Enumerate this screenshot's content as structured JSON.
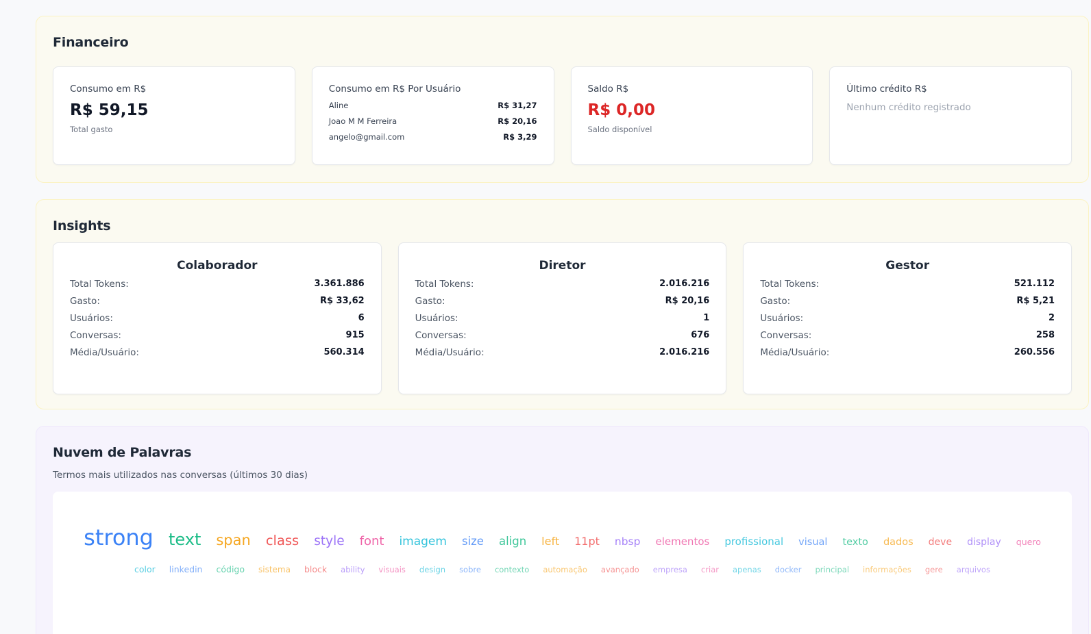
{
  "financeiro": {
    "title": "Financeiro",
    "consumo": {
      "title": "Consumo em R$",
      "value": "R$ 59,15",
      "note": "Total gasto"
    },
    "por_usuario": {
      "title": "Consumo em R$ Por Usuário",
      "rows": [
        {
          "name": "Aline",
          "value": "R$ 31,27"
        },
        {
          "name": "Joao M M Ferreira",
          "value": "R$ 20,16"
        },
        {
          "name": "angelo@gmail.com",
          "value": "R$ 3,29"
        }
      ]
    },
    "saldo": {
      "title": "Saldo R$",
      "value": "R$ 0,00",
      "note": "Saldo disponível",
      "color": "#dc2626"
    },
    "ultimo_credito": {
      "title": "Último crédito R$",
      "empty": "Nenhum crédito registrado"
    }
  },
  "insights": {
    "title": "Insights",
    "labels": {
      "tokens": "Total Tokens:",
      "gasto": "Gasto:",
      "usuarios": "Usuários:",
      "conversas": "Conversas:",
      "media": "Média/Usuário:"
    },
    "cards": [
      {
        "title": "Colaborador",
        "tokens": "3.361.886",
        "gasto": "R$ 33,62",
        "usuarios": "6",
        "conversas": "915",
        "media": "560.314"
      },
      {
        "title": "Diretor",
        "tokens": "2.016.216",
        "gasto": "R$ 20,16",
        "usuarios": "1",
        "conversas": "676",
        "media": "2.016.216"
      },
      {
        "title": "Gestor",
        "tokens": "521.112",
        "gasto": "R$ 5,21",
        "usuarios": "2",
        "conversas": "258",
        "media": "260.556"
      }
    ]
  },
  "nuvem": {
    "title": "Nuvem de Palavras",
    "subtitle": "Termos mais utilizados nas conversas (últimos 30 dias)",
    "palette": [
      "#3b82f6",
      "#10b981",
      "#f59e0b",
      "#ef4444",
      "#8b5cf6",
      "#ec4899",
      "#06b6d4"
    ],
    "line1": [
      {
        "word": "strong",
        "size": 32,
        "color": "#3b82f6",
        "opacity": 1.0
      },
      {
        "word": "text",
        "size": 24,
        "color": "#10b981",
        "opacity": 0.95
      },
      {
        "word": "span",
        "size": 21,
        "color": "#f59e0b",
        "opacity": 0.9
      },
      {
        "word": "class",
        "size": 19.5,
        "color": "#ef4444",
        "opacity": 0.88
      },
      {
        "word": "style",
        "size": 18.5,
        "color": "#8b5cf6",
        "opacity": 0.86
      },
      {
        "word": "font",
        "size": 18,
        "color": "#ec4899",
        "opacity": 0.84
      },
      {
        "word": "imagem",
        "size": 17,
        "color": "#06b6d4",
        "opacity": 0.82
      },
      {
        "word": "size",
        "size": 16.5,
        "color": "#3b82f6",
        "opacity": 0.8
      },
      {
        "word": "align",
        "size": 16.5,
        "color": "#10b981",
        "opacity": 0.8
      },
      {
        "word": "left",
        "size": 16,
        "color": "#f59e0b",
        "opacity": 0.78
      },
      {
        "word": "11pt",
        "size": 16,
        "color": "#ef4444",
        "opacity": 0.78
      },
      {
        "word": "nbsp",
        "size": 15.5,
        "color": "#8b5cf6",
        "opacity": 0.76
      },
      {
        "word": "elementos",
        "size": 15,
        "color": "#ec4899",
        "opacity": 0.74
      },
      {
        "word": "profissional",
        "size": 15,
        "color": "#06b6d4",
        "opacity": 0.74
      },
      {
        "word": "visual",
        "size": 14.5,
        "color": "#3b82f6",
        "opacity": 0.72
      },
      {
        "word": "texto",
        "size": 14.5,
        "color": "#10b981",
        "opacity": 0.72
      },
      {
        "word": "dados",
        "size": 14.5,
        "color": "#f59e0b",
        "opacity": 0.7
      },
      {
        "word": "deve",
        "size": 14,
        "color": "#ef4444",
        "opacity": 0.7
      },
      {
        "word": "display",
        "size": 14,
        "color": "#8b5cf6",
        "opacity": 0.68
      },
      {
        "word": "quero",
        "size": 12.5,
        "color": "#ec4899",
        "opacity": 0.68
      }
    ],
    "line2": [
      {
        "word": "color",
        "size": 12.5,
        "color": "#06b6d4",
        "opacity": 0.66
      },
      {
        "word": "linkedin",
        "size": 12.5,
        "color": "#3b82f6",
        "opacity": 0.64
      },
      {
        "word": "código",
        "size": 12.5,
        "color": "#10b981",
        "opacity": 0.64
      },
      {
        "word": "sistema",
        "size": 12,
        "color": "#f59e0b",
        "opacity": 0.62
      },
      {
        "word": "block",
        "size": 12.5,
        "color": "#ef4444",
        "opacity": 0.62
      },
      {
        "word": "ability",
        "size": 11.5,
        "color": "#8b5cf6",
        "opacity": 0.6
      },
      {
        "word": "visuais",
        "size": 11.5,
        "color": "#ec4899",
        "opacity": 0.6
      },
      {
        "word": "design",
        "size": 11.5,
        "color": "#06b6d4",
        "opacity": 0.6
      },
      {
        "word": "sobre",
        "size": 11.5,
        "color": "#3b82f6",
        "opacity": 0.58
      },
      {
        "word": "contexto",
        "size": 11.5,
        "color": "#10b981",
        "opacity": 0.58
      },
      {
        "word": "automação",
        "size": 11.5,
        "color": "#f59e0b",
        "opacity": 0.58
      },
      {
        "word": "avançado",
        "size": 11.5,
        "color": "#ef4444",
        "opacity": 0.58
      },
      {
        "word": "empresa",
        "size": 11.5,
        "color": "#8b5cf6",
        "opacity": 0.56
      },
      {
        "word": "criar",
        "size": 11.5,
        "color": "#ec4899",
        "opacity": 0.56
      },
      {
        "word": "apenas",
        "size": 11.5,
        "color": "#06b6d4",
        "opacity": 0.56
      },
      {
        "word": "docker",
        "size": 11.5,
        "color": "#3b82f6",
        "opacity": 0.56
      },
      {
        "word": "principal",
        "size": 11.5,
        "color": "#10b981",
        "opacity": 0.54
      },
      {
        "word": "informações",
        "size": 11.5,
        "color": "#f59e0b",
        "opacity": 0.54
      },
      {
        "word": "gere",
        "size": 11.5,
        "color": "#ef4444",
        "opacity": 0.54
      },
      {
        "word": "arquivos",
        "size": 11.5,
        "color": "#8b5cf6",
        "opacity": 0.54
      }
    ]
  }
}
